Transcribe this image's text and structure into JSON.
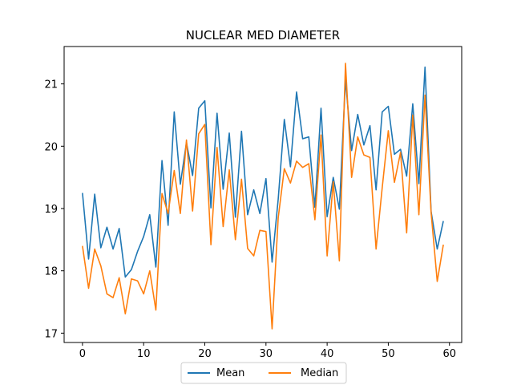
{
  "chart_data": {
    "type": "line",
    "title": "NUCLEAR MED DIAMETER",
    "xlabel": "",
    "ylabel": "",
    "xlim": [
      -3,
      62
    ],
    "ylim": [
      16.85,
      21.6
    ],
    "xticks": [
      0,
      10,
      20,
      30,
      40,
      50,
      60
    ],
    "yticks": [
      17,
      18,
      19,
      20,
      21
    ],
    "grid": false,
    "legend": {
      "placement": "bottom-center",
      "columns": 2
    },
    "x": [
      0,
      1,
      2,
      3,
      4,
      5,
      6,
      7,
      8,
      9,
      10,
      11,
      12,
      13,
      14,
      15,
      16,
      17,
      18,
      19,
      20,
      21,
      22,
      23,
      24,
      25,
      26,
      27,
      28,
      29,
      30,
      31,
      32,
      33,
      34,
      35,
      36,
      37,
      38,
      39,
      40,
      41,
      42,
      43,
      44,
      45,
      46,
      47,
      48,
      49,
      50,
      51,
      52,
      53,
      54,
      55,
      56,
      57,
      58,
      59
    ],
    "series": [
      {
        "name": "Mean",
        "color": "#1f77b4",
        "values": [
          19.25,
          18.19,
          19.23,
          18.37,
          18.7,
          18.35,
          18.68,
          17.9,
          18.02,
          18.31,
          18.55,
          18.9,
          18.06,
          19.77,
          18.73,
          20.55,
          19.39,
          20.06,
          19.53,
          20.61,
          20.73,
          19.01,
          20.53,
          19.31,
          20.21,
          18.86,
          20.24,
          18.9,
          19.3,
          18.92,
          19.48,
          18.14,
          19.15,
          20.43,
          19.67,
          20.87,
          20.12,
          20.15,
          19.02,
          20.61,
          18.87,
          19.5,
          18.99,
          21.07,
          19.93,
          20.51,
          20.02,
          20.33,
          19.3,
          20.55,
          20.64,
          19.87,
          19.95,
          19.52,
          20.68,
          19.4,
          21.27,
          18.95,
          18.35,
          18.8
        ]
      },
      {
        "name": "Median",
        "color": "#ff7f0e",
        "values": [
          18.4,
          17.72,
          18.35,
          18.08,
          17.63,
          17.57,
          17.89,
          17.31,
          17.87,
          17.84,
          17.63,
          18.0,
          17.37,
          19.24,
          18.92,
          19.61,
          18.92,
          20.1,
          18.96,
          20.2,
          20.35,
          18.42,
          19.98,
          18.71,
          19.62,
          18.5,
          19.47,
          18.36,
          18.24,
          18.65,
          18.63,
          17.07,
          18.85,
          19.64,
          19.41,
          19.76,
          19.66,
          19.72,
          18.82,
          20.18,
          18.24,
          19.43,
          18.16,
          21.33,
          19.5,
          20.15,
          19.86,
          19.82,
          18.35,
          19.33,
          20.25,
          19.42,
          19.9,
          18.61,
          20.5,
          18.9,
          20.82,
          18.93,
          17.83,
          18.42
        ]
      }
    ]
  }
}
